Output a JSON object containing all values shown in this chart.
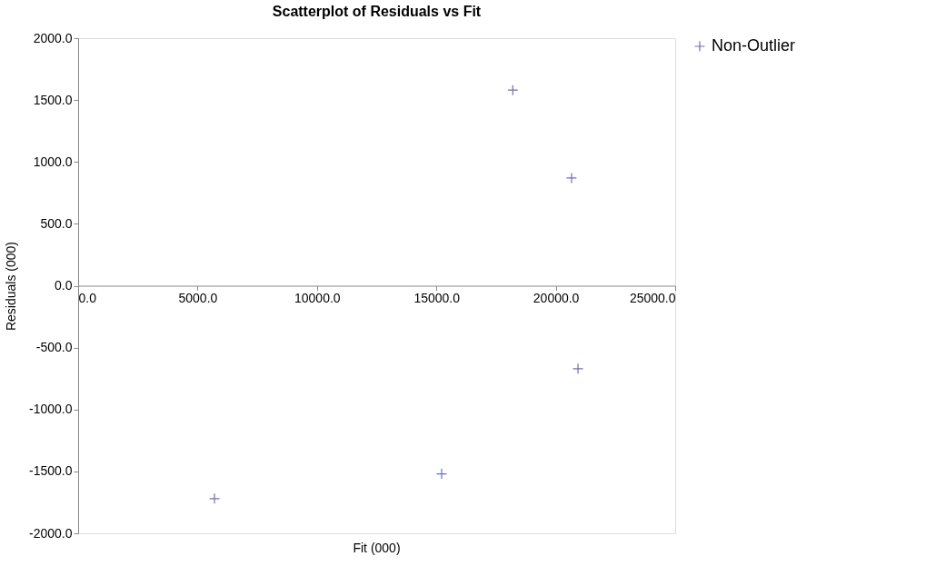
{
  "chart_data": {
    "type": "scatter",
    "title": "Scatterplot of Residuals vs Fit",
    "xlabel": "Fit  (000)",
    "ylabel": "Residuals (000)",
    "x": [
      18200,
      20660,
      20930,
      15220,
      5710
    ],
    "series": [
      {
        "name": "Non-Outlier",
        "color": "#333399",
        "values": [
          1580,
          870,
          -670,
          -1520,
          -1720
        ]
      }
    ],
    "xlim": [
      0,
      25000
    ],
    "xticks": [
      {
        "value": 0,
        "label": "0.0"
      },
      {
        "value": 5000,
        "label": "5000.0"
      },
      {
        "value": 10000,
        "label": "10000.0"
      },
      {
        "value": 15000,
        "label": "15000.0"
      },
      {
        "value": 20000,
        "label": "20000.0"
      },
      {
        "value": 25000,
        "label": "25000.0"
      }
    ],
    "ylim": [
      -2000,
      2000
    ],
    "yticks": [
      {
        "value": -2000,
        "label": "-2000.0"
      },
      {
        "value": -1500,
        "label": "-1500.0"
      },
      {
        "value": -1000,
        "label": "-1000.0"
      },
      {
        "value": -500,
        "label": "-500.0"
      },
      {
        "value": 0,
        "label": "0.0"
      },
      {
        "value": 500,
        "label": "500.0"
      },
      {
        "value": 1000,
        "label": "1000.0"
      },
      {
        "value": 1500,
        "label": "1500.0"
      },
      {
        "value": 2000,
        "label": "2000.0"
      }
    ],
    "grid": false,
    "legend": "right",
    "marker": "cross"
  }
}
